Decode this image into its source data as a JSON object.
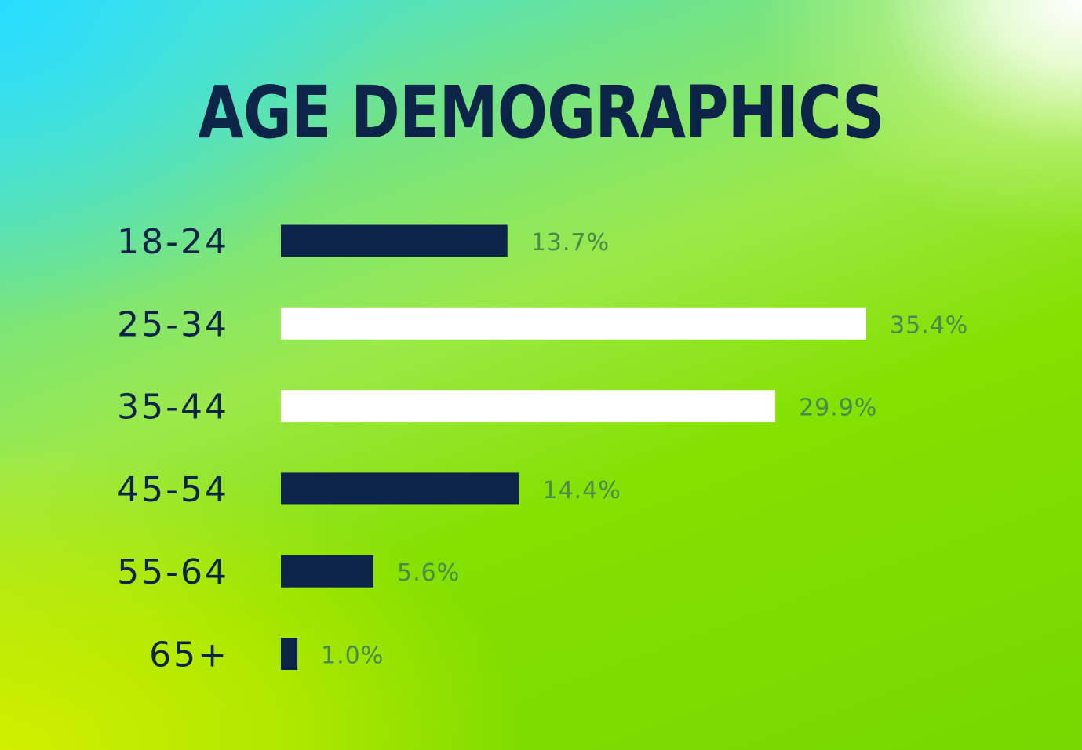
{
  "page": {
    "title": "AGE DEMOGRAPHICS"
  },
  "colors": {
    "text_dark": "#0b2447",
    "bar_dark": "#0b2447",
    "bar_highlight": "#ffffff",
    "value_label": "#4a8a4e"
  },
  "chart_data": {
    "type": "bar",
    "orientation": "horizontal",
    "title": "AGE DEMOGRAPHICS",
    "xlabel": "",
    "ylabel": "",
    "xlim": [
      0,
      35.4
    ],
    "grid": false,
    "categories": [
      "18-24",
      "25-34",
      "35-44",
      "45-54",
      "55-64",
      "65+"
    ],
    "values": [
      13.7,
      35.4,
      29.9,
      14.4,
      5.6,
      1.0
    ],
    "value_labels": [
      "13.7%",
      "35.4%",
      "29.9%",
      "14.4%",
      "5.6%",
      "1.0%"
    ],
    "bar_colors": [
      "#0b2447",
      "#ffffff",
      "#ffffff",
      "#0b2447",
      "#0b2447",
      "#0b2447"
    ]
  }
}
